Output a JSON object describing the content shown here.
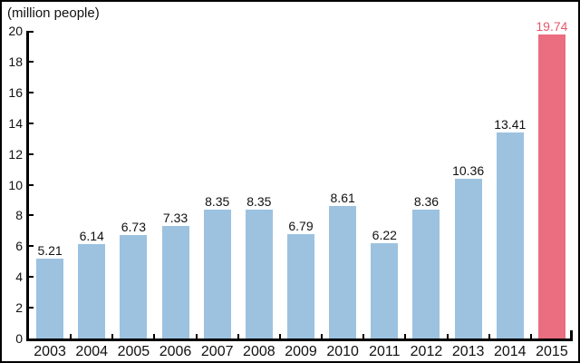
{
  "unit_label": "(million people)",
  "chart_data": {
    "type": "bar",
    "title": "",
    "xlabel": "",
    "ylabel": "(million people)",
    "categories": [
      "2003",
      "2004",
      "2005",
      "2006",
      "2007",
      "2008",
      "2009",
      "2010",
      "2011",
      "2012",
      "2013",
      "2014",
      "2015"
    ],
    "values": [
      5.21,
      6.14,
      6.73,
      7.33,
      8.35,
      8.35,
      6.79,
      8.61,
      6.22,
      8.36,
      10.36,
      13.41,
      19.74
    ],
    "value_labels": [
      "5.21",
      "6.14",
      "6.73",
      "7.33",
      "8.35",
      "8.35",
      "6.79",
      "8.61",
      "6.22",
      "8.36",
      "10.36",
      "13.41",
      "19.74"
    ],
    "ylim": [
      0,
      20
    ],
    "ytick_step": 2,
    "ytick_labels": [
      "0",
      "2",
      "4",
      "6",
      "8",
      "10",
      "12",
      "14",
      "16",
      "18",
      "20"
    ],
    "grid": "off",
    "legend": "none",
    "highlight_index": 12,
    "colors": {
      "bar_default": "#9CC2E0",
      "bar_highlight": "#EA6D80",
      "value_label_default": "#111111",
      "value_label_highlight": "#E7596D",
      "axis": "#000000",
      "text": "#111111"
    }
  }
}
